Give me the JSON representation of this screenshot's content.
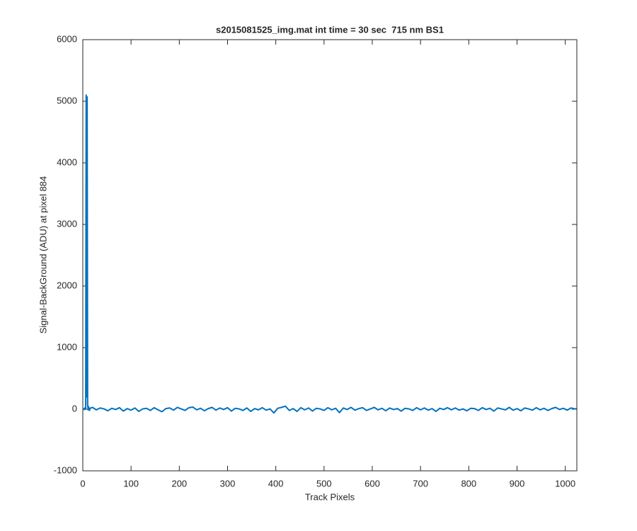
{
  "chart_data": {
    "type": "line",
    "title": "s2015081525_img.mat int time = 30 sec  715 nm BS1",
    "x_label": "Track Pixels",
    "y_label": "Signal-BackGround (ADU) at pixel 884",
    "xlim": [
      0,
      1024
    ],
    "xticks": [
      0,
      100,
      200,
      300,
      400,
      500,
      600,
      700,
      800,
      900,
      1000
    ],
    "ylim": [
      -1000,
      6000
    ],
    "yticks": [
      -1000,
      0,
      1000,
      2000,
      3000,
      4000,
      5000,
      6000
    ],
    "x": [
      1,
      2,
      3,
      4,
      5,
      6,
      7,
      8,
      9,
      10,
      11,
      12,
      13,
      14,
      15,
      20,
      28,
      36,
      44,
      52,
      60,
      68,
      76,
      84,
      92,
      100,
      108,
      116,
      124,
      132,
      140,
      148,
      156,
      164,
      172,
      180,
      188,
      196,
      204,
      212,
      220,
      228,
      236,
      244,
      252,
      260,
      268,
      276,
      284,
      292,
      300,
      308,
      316,
      324,
      332,
      340,
      348,
      356,
      364,
      372,
      380,
      388,
      396,
      404,
      412,
      420,
      428,
      436,
      444,
      452,
      460,
      468,
      476,
      484,
      492,
      500,
      508,
      516,
      524,
      532,
      540,
      548,
      556,
      564,
      572,
      580,
      588,
      596,
      604,
      612,
      620,
      628,
      636,
      644,
      652,
      660,
      668,
      676,
      684,
      692,
      700,
      708,
      716,
      724,
      732,
      740,
      748,
      756,
      764,
      772,
      780,
      788,
      796,
      804,
      812,
      820,
      828,
      836,
      844,
      852,
      860,
      868,
      876,
      884,
      892,
      900,
      908,
      916,
      924,
      932,
      940,
      948,
      956,
      964,
      972,
      980,
      988,
      996,
      1004,
      1012,
      1020,
      1024
    ],
    "series": [
      {
        "color": "#0072bd",
        "values": [
          10,
          5,
          -5,
          20,
          0,
          15,
          5100,
          200,
          5070,
          80,
          -10,
          40,
          5,
          -20,
          15,
          30,
          -10,
          20,
          5,
          -25,
          15,
          -5,
          25,
          -30,
          10,
          -15,
          20,
          -35,
          5,
          15,
          -20,
          25,
          -10,
          -40,
          10,
          20,
          -15,
          30,
          5,
          -20,
          25,
          35,
          -10,
          15,
          -25,
          10,
          30,
          -15,
          20,
          -5,
          25,
          -30,
          15,
          5,
          -20,
          20,
          -35,
          10,
          -10,
          25,
          -15,
          5,
          -60,
          15,
          30,
          50,
          -20,
          10,
          -35,
          25,
          -10,
          20,
          -30,
          15,
          5,
          -20,
          25,
          -10,
          15,
          -55,
          20,
          -5,
          30,
          -15,
          10,
          25,
          -20,
          5,
          30,
          -10,
          15,
          -25,
          20,
          -5,
          10,
          -30,
          15,
          5,
          -20,
          25,
          -10,
          20,
          -15,
          10,
          -35,
          15,
          -5,
          25,
          -10,
          20,
          -15,
          5,
          -25,
          15,
          10,
          -20,
          25,
          -5,
          15,
          -30,
          20,
          5,
          -10,
          30,
          -15,
          10,
          -25,
          20,
          5,
          -15,
          25,
          -10,
          15,
          -20,
          10,
          30,
          -5,
          15,
          -15,
          20,
          5,
          10
        ]
      }
    ]
  }
}
